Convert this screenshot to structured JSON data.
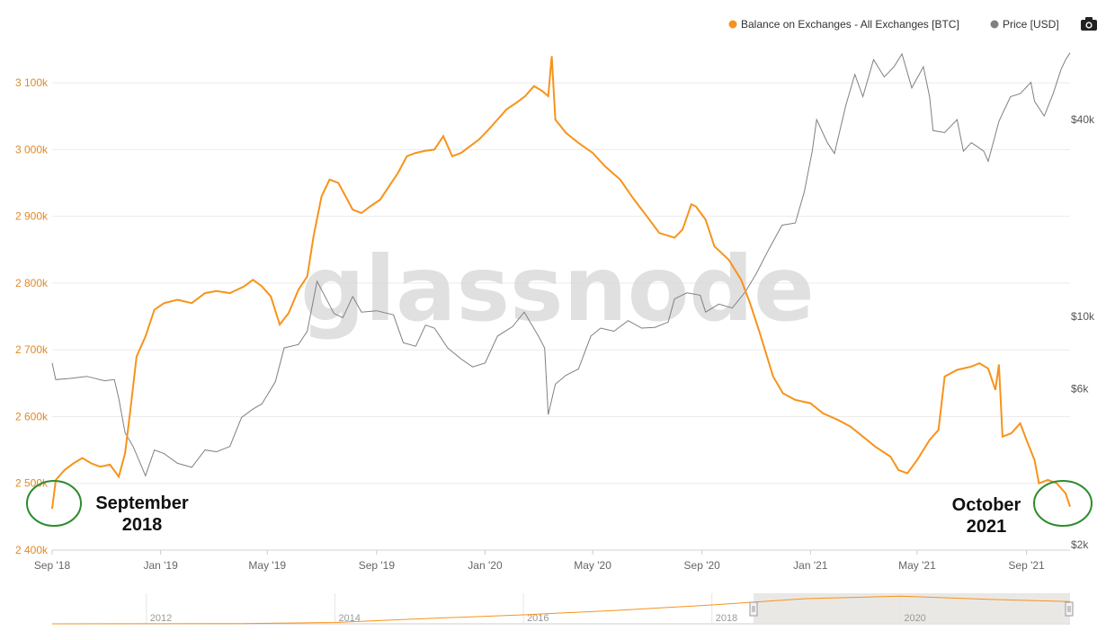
{
  "chart_data": {
    "type": "line",
    "watermark": "glassnode",
    "legend": [
      {
        "name": "Balance on Exchanges - All Exchanges [BTC]",
        "color": "#f7931a"
      },
      {
        "name": "Price [USD]",
        "color": "#808080"
      }
    ],
    "legend_position": "top-right",
    "left_axis": {
      "ticks": [
        "2 400k",
        "2 500k",
        "2 600k",
        "2 700k",
        "2 800k",
        "2 900k",
        "3 000k",
        "3 100k"
      ],
      "tick_values": [
        2400000,
        2500000,
        2600000,
        2700000,
        2800000,
        2900000,
        3000000,
        3100000
      ],
      "range": [
        2400000,
        3150000
      ],
      "color": "#e0892a"
    },
    "right_axis": {
      "scale": "log",
      "ticks": [
        "$2k",
        "$6k",
        "$10k",
        "$40k"
      ],
      "tick_values": [
        2000,
        6000,
        10000,
        40000
      ],
      "color": "#555555"
    },
    "x_axis": {
      "ticks": [
        "Sep '18",
        "Jan '19",
        "May '19",
        "Sep '19",
        "Jan '20",
        "May '20",
        "Sep '20",
        "Jan '21",
        "May '21",
        "Sep '21"
      ],
      "tick_dates": [
        "2018-09-01",
        "2019-01-01",
        "2019-05-01",
        "2019-09-01",
        "2020-01-01",
        "2020-05-01",
        "2020-09-01",
        "2021-01-01",
        "2021-05-01",
        "2021-09-01"
      ],
      "range": [
        "2018-09-01",
        "2021-10-20"
      ]
    },
    "grid": true,
    "series": [
      {
        "name": "Balance on Exchanges - All Exchanges [BTC]",
        "color": "#f7931a",
        "axis": "left",
        "points": [
          [
            "2018-09-01",
            2462000
          ],
          [
            "2018-09-05",
            2505000
          ],
          [
            "2018-09-15",
            2520000
          ],
          [
            "2018-09-25",
            2530000
          ],
          [
            "2018-10-05",
            2538000
          ],
          [
            "2018-10-15",
            2530000
          ],
          [
            "2018-10-25",
            2525000
          ],
          [
            "2018-11-05",
            2528000
          ],
          [
            "2018-11-15",
            2510000
          ],
          [
            "2018-11-22",
            2545000
          ],
          [
            "2018-11-28",
            2610000
          ],
          [
            "2018-12-05",
            2690000
          ],
          [
            "2018-12-15",
            2720000
          ],
          [
            "2018-12-25",
            2760000
          ],
          [
            "2019-01-05",
            2770000
          ],
          [
            "2019-01-20",
            2775000
          ],
          [
            "2019-02-05",
            2770000
          ],
          [
            "2019-02-20",
            2785000
          ],
          [
            "2019-03-05",
            2788000
          ],
          [
            "2019-03-20",
            2785000
          ],
          [
            "2019-04-05",
            2795000
          ],
          [
            "2019-04-15",
            2805000
          ],
          [
            "2019-04-25",
            2795000
          ],
          [
            "2019-05-05",
            2780000
          ],
          [
            "2019-05-15",
            2738000
          ],
          [
            "2019-05-25",
            2755000
          ],
          [
            "2019-06-05",
            2790000
          ],
          [
            "2019-06-15",
            2810000
          ],
          [
            "2019-06-22",
            2870000
          ],
          [
            "2019-07-01",
            2930000
          ],
          [
            "2019-07-10",
            2955000
          ],
          [
            "2019-07-20",
            2950000
          ],
          [
            "2019-07-28",
            2930000
          ],
          [
            "2019-08-05",
            2910000
          ],
          [
            "2019-08-15",
            2905000
          ],
          [
            "2019-08-25",
            2915000
          ],
          [
            "2019-09-05",
            2925000
          ],
          [
            "2019-09-15",
            2945000
          ],
          [
            "2019-09-25",
            2965000
          ],
          [
            "2019-10-05",
            2990000
          ],
          [
            "2019-10-15",
            2995000
          ],
          [
            "2019-10-25",
            2998000
          ],
          [
            "2019-11-05",
            3000000
          ],
          [
            "2019-11-15",
            3020000
          ],
          [
            "2019-11-25",
            2990000
          ],
          [
            "2019-12-05",
            2995000
          ],
          [
            "2019-12-15",
            3005000
          ],
          [
            "2019-12-25",
            3015000
          ],
          [
            "2020-01-05",
            3030000
          ],
          [
            "2020-01-15",
            3045000
          ],
          [
            "2020-01-25",
            3060000
          ],
          [
            "2020-02-05",
            3070000
          ],
          [
            "2020-02-15",
            3080000
          ],
          [
            "2020-02-25",
            3095000
          ],
          [
            "2020-03-05",
            3088000
          ],
          [
            "2020-03-12",
            3080000
          ],
          [
            "2020-03-16",
            3140000
          ],
          [
            "2020-03-20",
            3045000
          ],
          [
            "2020-04-01",
            3025000
          ],
          [
            "2020-04-15",
            3010000
          ],
          [
            "2020-05-01",
            2995000
          ],
          [
            "2020-05-15",
            2975000
          ],
          [
            "2020-06-01",
            2955000
          ],
          [
            "2020-06-15",
            2928000
          ],
          [
            "2020-07-01",
            2900000
          ],
          [
            "2020-07-15",
            2875000
          ],
          [
            "2020-08-01",
            2868000
          ],
          [
            "2020-08-10",
            2880000
          ],
          [
            "2020-08-20",
            2918000
          ],
          [
            "2020-08-25",
            2915000
          ],
          [
            "2020-09-05",
            2895000
          ],
          [
            "2020-09-15",
            2855000
          ],
          [
            "2020-10-01",
            2835000
          ],
          [
            "2020-10-15",
            2805000
          ],
          [
            "2020-10-25",
            2770000
          ],
          [
            "2020-11-05",
            2725000
          ],
          [
            "2020-11-20",
            2660000
          ],
          [
            "2020-12-01",
            2635000
          ],
          [
            "2020-12-15",
            2625000
          ],
          [
            "2021-01-01",
            2620000
          ],
          [
            "2021-01-15",
            2605000
          ],
          [
            "2021-02-01",
            2595000
          ],
          [
            "2021-02-15",
            2585000
          ],
          [
            "2021-03-01",
            2570000
          ],
          [
            "2021-03-15",
            2555000
          ],
          [
            "2021-04-01",
            2540000
          ],
          [
            "2021-04-10",
            2520000
          ],
          [
            "2021-04-20",
            2515000
          ],
          [
            "2021-05-01",
            2535000
          ],
          [
            "2021-05-15",
            2565000
          ],
          [
            "2021-05-25",
            2580000
          ],
          [
            "2021-06-01",
            2660000
          ],
          [
            "2021-06-15",
            2670000
          ],
          [
            "2021-07-01",
            2675000
          ],
          [
            "2021-07-10",
            2680000
          ],
          [
            "2021-07-20",
            2672000
          ],
          [
            "2021-07-28",
            2640000
          ],
          [
            "2021-08-01",
            2678000
          ],
          [
            "2021-08-05",
            2570000
          ],
          [
            "2021-08-15",
            2575000
          ],
          [
            "2021-08-25",
            2590000
          ],
          [
            "2021-09-01",
            2565000
          ],
          [
            "2021-09-10",
            2535000
          ],
          [
            "2021-09-15",
            2500000
          ],
          [
            "2021-09-25",
            2505000
          ],
          [
            "2021-10-05",
            2500000
          ],
          [
            "2021-10-15",
            2485000
          ],
          [
            "2021-10-20",
            2465000
          ]
        ]
      },
      {
        "name": "Price [USD]",
        "color": "#808080",
        "axis": "right",
        "points": [
          [
            "2018-09-01",
            7200
          ],
          [
            "2018-09-05",
            6400
          ],
          [
            "2018-09-20",
            6450
          ],
          [
            "2018-10-10",
            6550
          ],
          [
            "2018-10-30",
            6350
          ],
          [
            "2018-11-10",
            6400
          ],
          [
            "2018-11-15",
            5600
          ],
          [
            "2018-11-22",
            4400
          ],
          [
            "2018-12-01",
            4000
          ],
          [
            "2018-12-10",
            3500
          ],
          [
            "2018-12-15",
            3250
          ],
          [
            "2018-12-25",
            3900
          ],
          [
            "2019-01-05",
            3800
          ],
          [
            "2019-01-20",
            3550
          ],
          [
            "2019-02-05",
            3450
          ],
          [
            "2019-02-20",
            3900
          ],
          [
            "2019-03-05",
            3850
          ],
          [
            "2019-03-20",
            4000
          ],
          [
            "2019-04-02",
            4900
          ],
          [
            "2019-04-15",
            5200
          ],
          [
            "2019-04-25",
            5400
          ],
          [
            "2019-05-10",
            6300
          ],
          [
            "2019-05-20",
            8000
          ],
          [
            "2019-06-05",
            8200
          ],
          [
            "2019-06-15",
            9000
          ],
          [
            "2019-06-26",
            12800
          ],
          [
            "2019-07-05",
            11500
          ],
          [
            "2019-07-15",
            10200
          ],
          [
            "2019-07-25",
            9900
          ],
          [
            "2019-08-05",
            11500
          ],
          [
            "2019-08-15",
            10300
          ],
          [
            "2019-09-01",
            10400
          ],
          [
            "2019-09-20",
            10100
          ],
          [
            "2019-10-01",
            8300
          ],
          [
            "2019-10-15",
            8100
          ],
          [
            "2019-10-26",
            9400
          ],
          [
            "2019-11-05",
            9200
          ],
          [
            "2019-11-20",
            8000
          ],
          [
            "2019-12-05",
            7400
          ],
          [
            "2019-12-18",
            7000
          ],
          [
            "2020-01-01",
            7200
          ],
          [
            "2020-01-15",
            8700
          ],
          [
            "2020-02-01",
            9300
          ],
          [
            "2020-02-14",
            10300
          ],
          [
            "2020-03-01",
            8700
          ],
          [
            "2020-03-08",
            8000
          ],
          [
            "2020-03-12",
            5000
          ],
          [
            "2020-03-20",
            6200
          ],
          [
            "2020-04-01",
            6600
          ],
          [
            "2020-04-15",
            6900
          ],
          [
            "2020-04-29",
            8700
          ],
          [
            "2020-05-10",
            9200
          ],
          [
            "2020-05-25",
            9000
          ],
          [
            "2020-06-10",
            9700
          ],
          [
            "2020-06-25",
            9200
          ],
          [
            "2020-07-10",
            9250
          ],
          [
            "2020-07-25",
            9600
          ],
          [
            "2020-08-01",
            11300
          ],
          [
            "2020-08-15",
            11800
          ],
          [
            "2020-08-30",
            11600
          ],
          [
            "2020-09-05",
            10300
          ],
          [
            "2020-09-20",
            10900
          ],
          [
            "2020-10-05",
            10600
          ],
          [
            "2020-10-20",
            11900
          ],
          [
            "2020-11-01",
            13500
          ],
          [
            "2020-11-15",
            16000
          ],
          [
            "2020-11-30",
            19000
          ],
          [
            "2020-12-15",
            19300
          ],
          [
            "2020-12-25",
            24000
          ],
          [
            "2021-01-03",
            32000
          ],
          [
            "2021-01-08",
            40000
          ],
          [
            "2021-01-20",
            34000
          ],
          [
            "2021-01-28",
            31500
          ],
          [
            "2021-02-10",
            44500
          ],
          [
            "2021-02-20",
            55000
          ],
          [
            "2021-03-01",
            47000
          ],
          [
            "2021-03-13",
            61000
          ],
          [
            "2021-03-25",
            54000
          ],
          [
            "2021-04-05",
            58000
          ],
          [
            "2021-04-14",
            63500
          ],
          [
            "2021-04-25",
            50000
          ],
          [
            "2021-05-08",
            58000
          ],
          [
            "2021-05-15",
            47000
          ],
          [
            "2021-05-19",
            37000
          ],
          [
            "2021-06-01",
            36500
          ],
          [
            "2021-06-15",
            40000
          ],
          [
            "2021-06-22",
            32000
          ],
          [
            "2021-07-01",
            34000
          ],
          [
            "2021-07-15",
            32000
          ],
          [
            "2021-07-20",
            29800
          ],
          [
            "2021-08-01",
            39500
          ],
          [
            "2021-08-14",
            47000
          ],
          [
            "2021-08-25",
            48000
          ],
          [
            "2021-09-06",
            52000
          ],
          [
            "2021-09-10",
            45500
          ],
          [
            "2021-09-21",
            41000
          ],
          [
            "2021-10-01",
            48000
          ],
          [
            "2021-10-10",
            57000
          ],
          [
            "2021-10-15",
            61000
          ],
          [
            "2021-10-20",
            64000
          ]
        ]
      }
    ],
    "annotations": [
      {
        "text": [
          "September",
          "2018"
        ]
      },
      {
        "text": [
          "October",
          "2021"
        ]
      }
    ],
    "navigator": {
      "year_labels": [
        "2012",
        "2014",
        "2016",
        "2018",
        "2020"
      ],
      "series": [
        [
          2011.0,
          0
        ],
        [
          2013.0,
          30000
        ],
        [
          2014.0,
          150000
        ],
        [
          2015.0,
          600000
        ],
        [
          2016.0,
          1000000
        ],
        [
          2017.0,
          1500000
        ],
        [
          2018.0,
          2100000
        ],
        [
          2019.0,
          2800000
        ],
        [
          2020.0,
          3080000
        ],
        [
          2021.0,
          2700000
        ],
        [
          2021.8,
          2480000
        ]
      ]
    }
  }
}
